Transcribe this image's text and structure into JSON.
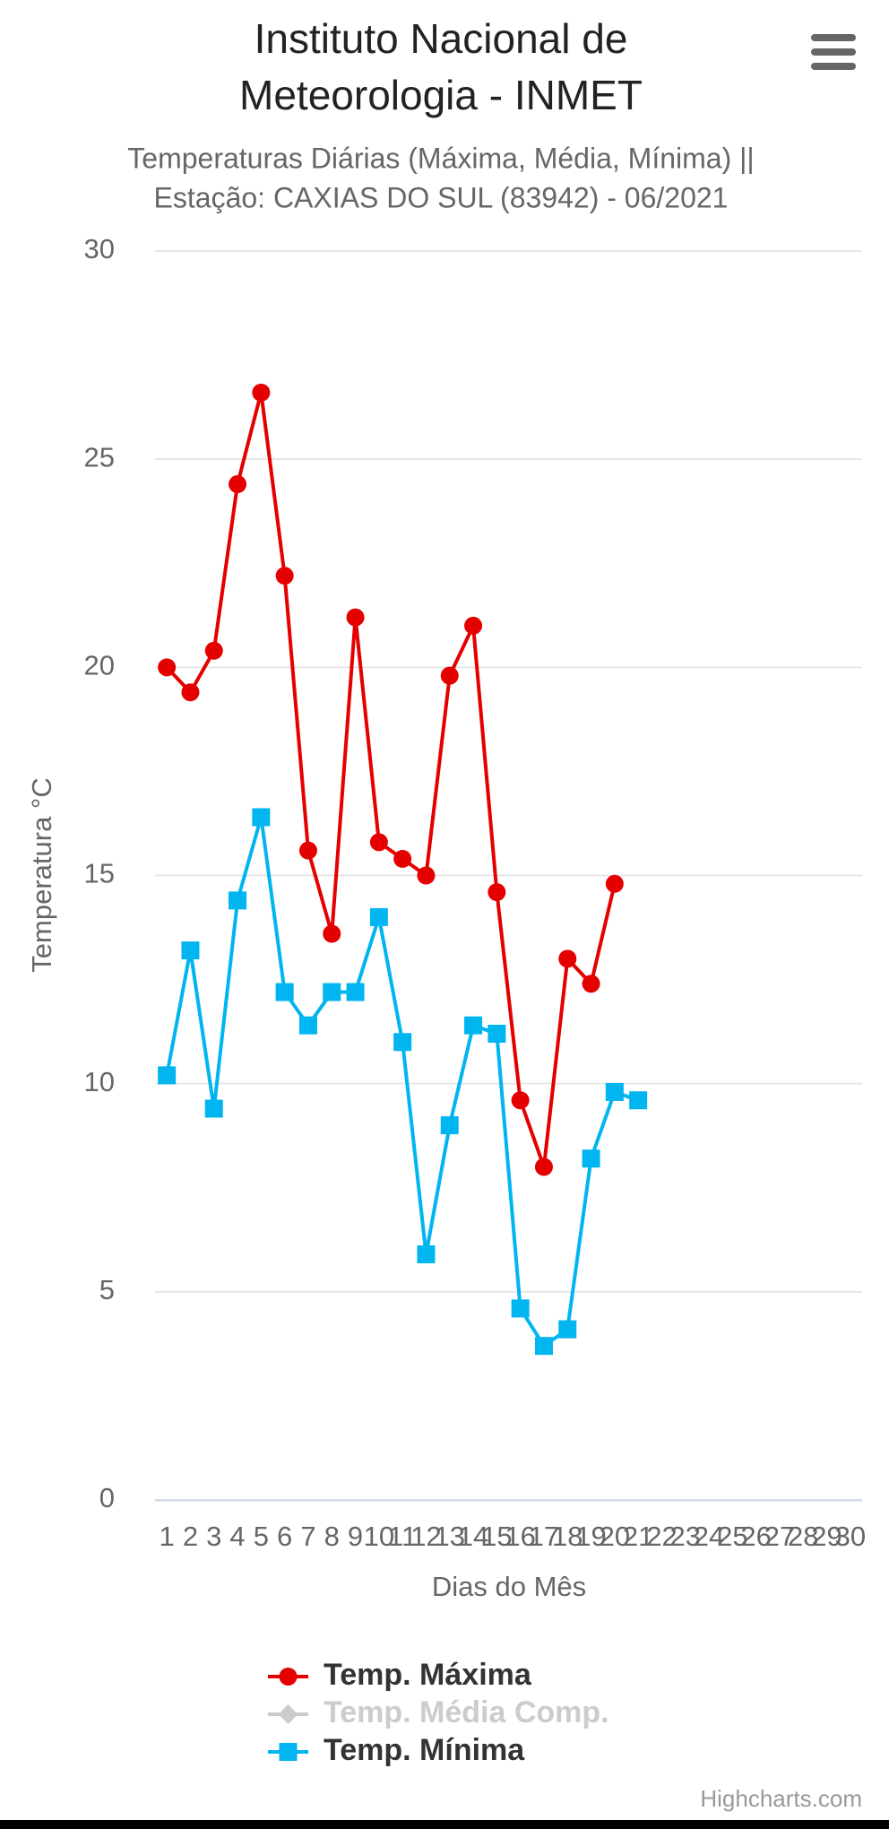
{
  "chart_data": {
    "type": "line",
    "title": "Instituto Nacional de Meteorologia - INMET",
    "subtitle": "Temperaturas Diárias (Máxima, Média, Mínima) || Estação: CAXIAS DO SUL (83942) - 06/2021",
    "y_label": "Temperatura °C",
    "x_label": "Dias do Mês",
    "credits": "Highcharts.com",
    "categories": [
      "1",
      "2",
      "3",
      "4",
      "5",
      "6",
      "7",
      "8",
      "9",
      "10",
      "11",
      "12",
      "13",
      "14",
      "15",
      "16",
      "17",
      "18",
      "19",
      "20",
      "21",
      "22",
      "23",
      "24",
      "25",
      "26",
      "27",
      "28",
      "29",
      "30"
    ],
    "series": [
      {
        "name": "Temp. Máxima",
        "color": "#e50000",
        "marker": "circle",
        "visible": true,
        "values": [
          20.0,
          19.4,
          20.4,
          24.4,
          26.6,
          22.2,
          15.6,
          13.6,
          21.2,
          15.8,
          15.4,
          15.0,
          19.8,
          21.0,
          14.6,
          9.6,
          8.0,
          13.0,
          12.4,
          14.8,
          null,
          null,
          null,
          null,
          null,
          null,
          null,
          null,
          null,
          null
        ]
      },
      {
        "name": "Temp. Média Comp.",
        "color": "#cccccc",
        "marker": "diamond",
        "visible": false,
        "values": [
          null,
          null,
          null,
          null,
          null,
          null,
          null,
          null,
          null,
          null,
          null,
          null,
          null,
          null,
          null,
          null,
          null,
          null,
          null,
          null,
          null,
          null,
          null,
          null,
          null,
          null,
          null,
          null,
          null,
          null
        ]
      },
      {
        "name": "Temp. Mínima",
        "color": "#00b5f0",
        "marker": "square",
        "visible": true,
        "values": [
          10.2,
          13.2,
          9.4,
          14.4,
          16.4,
          12.2,
          11.4,
          12.2,
          12.2,
          14.0,
          11.0,
          5.9,
          9.0,
          11.4,
          11.2,
          4.6,
          3.7,
          4.1,
          8.2,
          9.8,
          9.6,
          null,
          null,
          null,
          null,
          null,
          null,
          null,
          null,
          null
        ]
      }
    ],
    "ylim": [
      0,
      30
    ],
    "yticks": [
      0,
      5,
      10,
      15,
      20,
      25,
      30
    ],
    "grid": true
  }
}
